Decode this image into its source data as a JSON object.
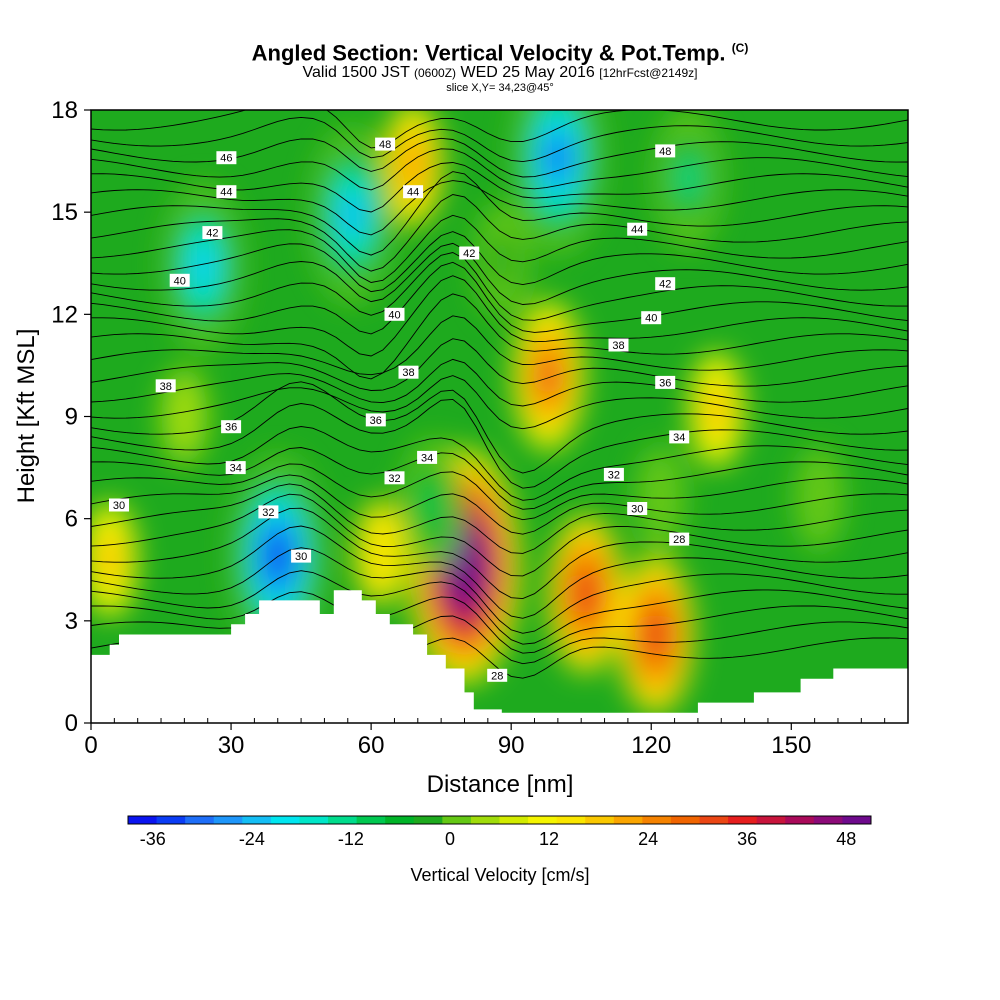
{
  "title": {
    "main": "Angled Section: Vertical Velocity & Pot.Temp.",
    "main_suffix": "(C)",
    "valid_prefix": "Valid 1500 JST",
    "valid_utc": "(0600Z)",
    "valid_date": "WED 25 May 2016",
    "valid_fcst": "[12hrFcst@2149z]",
    "slice": "slice X,Y= 34,23@45°"
  },
  "chart_data": {
    "type": "heatmap",
    "xlabel": "Distance [nm]",
    "ylabel": "Height [Kft MSL]",
    "xlim": [
      0,
      175
    ],
    "ylim": [
      0,
      18
    ],
    "xticks": [
      0,
      30,
      60,
      90,
      120,
      150
    ],
    "yticks": [
      0,
      3,
      6,
      9,
      12,
      15,
      18
    ],
    "colorbar": {
      "label": "Vertical Velocity [cm/s]",
      "tick_labels": [
        "-36",
        "-24",
        "-12",
        "0",
        "12",
        "24",
        "36",
        "48"
      ],
      "tick_values": [
        -36,
        -24,
        -12,
        0,
        12,
        24,
        36,
        48
      ],
      "range": [
        -39,
        51
      ],
      "step": 3,
      "colors": [
        "#0a14f0",
        "#0a3cf5",
        "#1e6ef8",
        "#1e96fa",
        "#14bef5",
        "#00e6f0",
        "#00e6c8",
        "#00dc8c",
        "#00c850",
        "#00b428",
        "#1eaa1e",
        "#64c814",
        "#a0dc0a",
        "#d2eb00",
        "#f5f500",
        "#fae600",
        "#fac800",
        "#faa500",
        "#f58200",
        "#f06400",
        "#eb4614",
        "#e61e1e",
        "#c8143c",
        "#aa0a5a",
        "#8c0a78",
        "#6e0a8c"
      ]
    },
    "terrain_profile": [
      [
        0,
        2.0
      ],
      [
        4,
        2.0
      ],
      [
        4,
        2.3
      ],
      [
        6,
        2.3
      ],
      [
        6,
        2.6
      ],
      [
        30,
        2.6
      ],
      [
        30,
        2.9
      ],
      [
        33,
        2.9
      ],
      [
        33,
        3.2
      ],
      [
        36,
        3.2
      ],
      [
        36,
        3.6
      ],
      [
        49,
        3.6
      ],
      [
        49,
        3.2
      ],
      [
        52,
        3.2
      ],
      [
        52,
        3.9
      ],
      [
        58,
        3.9
      ],
      [
        58,
        3.6
      ],
      [
        61,
        3.6
      ],
      [
        61,
        3.2
      ],
      [
        64,
        3.2
      ],
      [
        64,
        2.9
      ],
      [
        69,
        2.9
      ],
      [
        69,
        2.6
      ],
      [
        72,
        2.6
      ],
      [
        72,
        2.0
      ],
      [
        76,
        2.0
      ],
      [
        76,
        1.6
      ],
      [
        80,
        1.6
      ],
      [
        80,
        0.9
      ],
      [
        82,
        0.9
      ],
      [
        82,
        0.4
      ],
      [
        88,
        0.4
      ],
      [
        88,
        0.3
      ],
      [
        130,
        0.3
      ],
      [
        130,
        0.6
      ],
      [
        142,
        0.6
      ],
      [
        142,
        0.9
      ],
      [
        152,
        0.9
      ],
      [
        152,
        1.3
      ],
      [
        159,
        1.3
      ],
      [
        159,
        1.6
      ],
      [
        175,
        1.6
      ]
    ],
    "vertical_velocity_features": [
      {
        "x": 80,
        "y": 4.6,
        "value": 51
      },
      {
        "x": 98,
        "y": 10.2,
        "value": 21
      },
      {
        "x": 106,
        "y": 3.8,
        "value": 24
      },
      {
        "x": 121,
        "y": 2.6,
        "value": 24
      },
      {
        "x": 69,
        "y": 16.4,
        "value": 12
      },
      {
        "x": 134,
        "y": 9.2,
        "value": 9
      },
      {
        "x": 4,
        "y": 4.8,
        "value": 9
      },
      {
        "x": 62,
        "y": 5.0,
        "value": 6
      },
      {
        "x": 40,
        "y": 4.9,
        "value": -39
      },
      {
        "x": 100,
        "y": 16.6,
        "value": -36
      },
      {
        "x": 56,
        "y": 14.9,
        "value": -30
      },
      {
        "x": 24,
        "y": 13.4,
        "value": -27
      },
      {
        "x": 128,
        "y": 16.0,
        "value": -18
      },
      {
        "x": 122,
        "y": 6.6,
        "value": -6
      },
      {
        "x": 156,
        "y": 6.6,
        "value": -6
      },
      {
        "x": 73,
        "y": 6.4,
        "value": -15
      },
      {
        "x": 88,
        "y": 13.6,
        "value": -9
      },
      {
        "x": 20,
        "y": 9.0,
        "value": -3
      }
    ],
    "potential_temperature": {
      "label_values": [
        28,
        30,
        32,
        34,
        36,
        38,
        40,
        42,
        44,
        46,
        48
      ],
      "labels": [
        {
          "text": "46",
          "x": 29,
          "y": 16.6
        },
        {
          "text": "44",
          "x": 29,
          "y": 15.6
        },
        {
          "text": "42",
          "x": 26,
          "y": 14.4
        },
        {
          "text": "40",
          "x": 19,
          "y": 13.0
        },
        {
          "text": "38",
          "x": 16,
          "y": 9.9
        },
        {
          "text": "36",
          "x": 30,
          "y": 8.7
        },
        {
          "text": "34",
          "x": 31,
          "y": 7.5
        },
        {
          "text": "30",
          "x": 6,
          "y": 6.4
        },
        {
          "text": "32",
          "x": 38,
          "y": 6.2
        },
        {
          "text": "30",
          "x": 45,
          "y": 4.9
        },
        {
          "text": "48",
          "x": 63,
          "y": 17.0
        },
        {
          "text": "44",
          "x": 69,
          "y": 15.6
        },
        {
          "text": "42",
          "x": 81,
          "y": 13.8
        },
        {
          "text": "40",
          "x": 65,
          "y": 12.0
        },
        {
          "text": "38",
          "x": 68,
          "y": 10.3
        },
        {
          "text": "36",
          "x": 61,
          "y": 8.9
        },
        {
          "text": "34",
          "x": 72,
          "y": 7.8
        },
        {
          "text": "32",
          "x": 65,
          "y": 7.2
        },
        {
          "text": "28",
          "x": 87,
          "y": 1.4
        },
        {
          "text": "48",
          "x": 123,
          "y": 16.8
        },
        {
          "text": "44",
          "x": 117,
          "y": 14.5
        },
        {
          "text": "42",
          "x": 123,
          "y": 12.9
        },
        {
          "text": "40",
          "x": 120,
          "y": 11.9
        },
        {
          "text": "38",
          "x": 113,
          "y": 11.1
        },
        {
          "text": "36",
          "x": 123,
          "y": 10.0
        },
        {
          "text": "34",
          "x": 126,
          "y": 8.4
        },
        {
          "text": "32",
          "x": 112,
          "y": 7.3
        },
        {
          "text": "30",
          "x": 117,
          "y": 6.3
        },
        {
          "text": "28",
          "x": 126,
          "y": 5.4
        }
      ]
    }
  }
}
